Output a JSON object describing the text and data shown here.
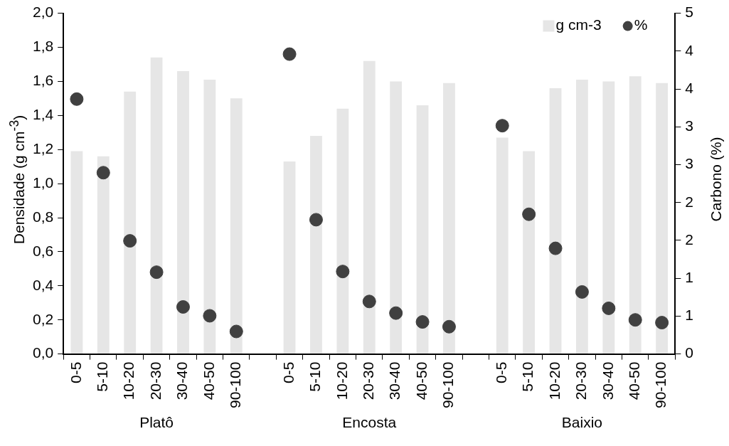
{
  "chart_data": {
    "type": "bar",
    "categories": [
      "0-5",
      "5-10",
      "10-20",
      "20-30",
      "30-40",
      "40-50",
      "90-100",
      null,
      "0-5",
      "5-10",
      "10-20",
      "20-30",
      "30-40",
      "40-50",
      "90-100",
      null,
      "0-5",
      "5-10",
      "10-20",
      "20-30",
      "30-40",
      "40-50",
      "90-100"
    ],
    "series": [
      {
        "name": "g cm-3",
        "color": "#e6e6e6",
        "values": [
          1.19,
          1.16,
          1.54,
          1.74,
          1.66,
          1.61,
          1.5,
          null,
          1.13,
          1.28,
          1.44,
          1.72,
          1.6,
          1.46,
          1.59,
          null,
          1.27,
          1.19,
          1.56,
          1.61,
          1.6,
          1.63,
          1.59
        ]
      },
      {
        "name": "%",
        "type": "scatter",
        "axis": "y2",
        "color": "#404040",
        "values": [
          3.74,
          2.66,
          1.66,
          1.2,
          0.69,
          0.56,
          0.33,
          null,
          4.4,
          1.97,
          1.21,
          0.77,
          0.6,
          0.47,
          0.4,
          null,
          3.35,
          2.05,
          1.55,
          0.91,
          0.67,
          0.5,
          0.46
        ]
      }
    ],
    "ylabel": "Densidade (g cm$^{-3}$)",
    "y2label": "Carbono (%)",
    "ylim": [
      0,
      2
    ],
    "yticks": [
      {
        "value": 0,
        "label": "0,0"
      },
      {
        "value": 0.2,
        "label": "0,2"
      },
      {
        "value": 0.4,
        "label": "0,4"
      },
      {
        "value": 0.6,
        "label": "0,6"
      },
      {
        "value": 0.8,
        "label": "0,8"
      },
      {
        "value": 1.0,
        "label": "1,0"
      },
      {
        "value": 1.2,
        "label": "1,2"
      },
      {
        "value": 1.4,
        "label": "1,4"
      },
      {
        "value": 1.6,
        "label": "1,6"
      },
      {
        "value": 1.8,
        "label": "1,8"
      },
      {
        "value": 2.0,
        "label": "2,0"
      }
    ],
    "y2lim": [
      0,
      5
    ],
    "y2ticks": [
      0,
      {
        "value": 0.556,
        "label": "1"
      },
      {
        "value": 1.111,
        "label": "1"
      },
      {
        "value": 1.667,
        "label": "2"
      },
      {
        "value": 2.222,
        "label": "2"
      },
      {
        "value": 2.778,
        "label": "3"
      },
      {
        "value": 3.333,
        "label": "3"
      },
      {
        "value": 3.889,
        "label": "4"
      },
      {
        "value": 4.444,
        "label": "4"
      },
      5
    ],
    "annotations": [
      "Platô",
      "Encosta",
      "Baixio"
    ],
    "legend": "top right",
    "marker": "circle",
    "grid": false
  }
}
